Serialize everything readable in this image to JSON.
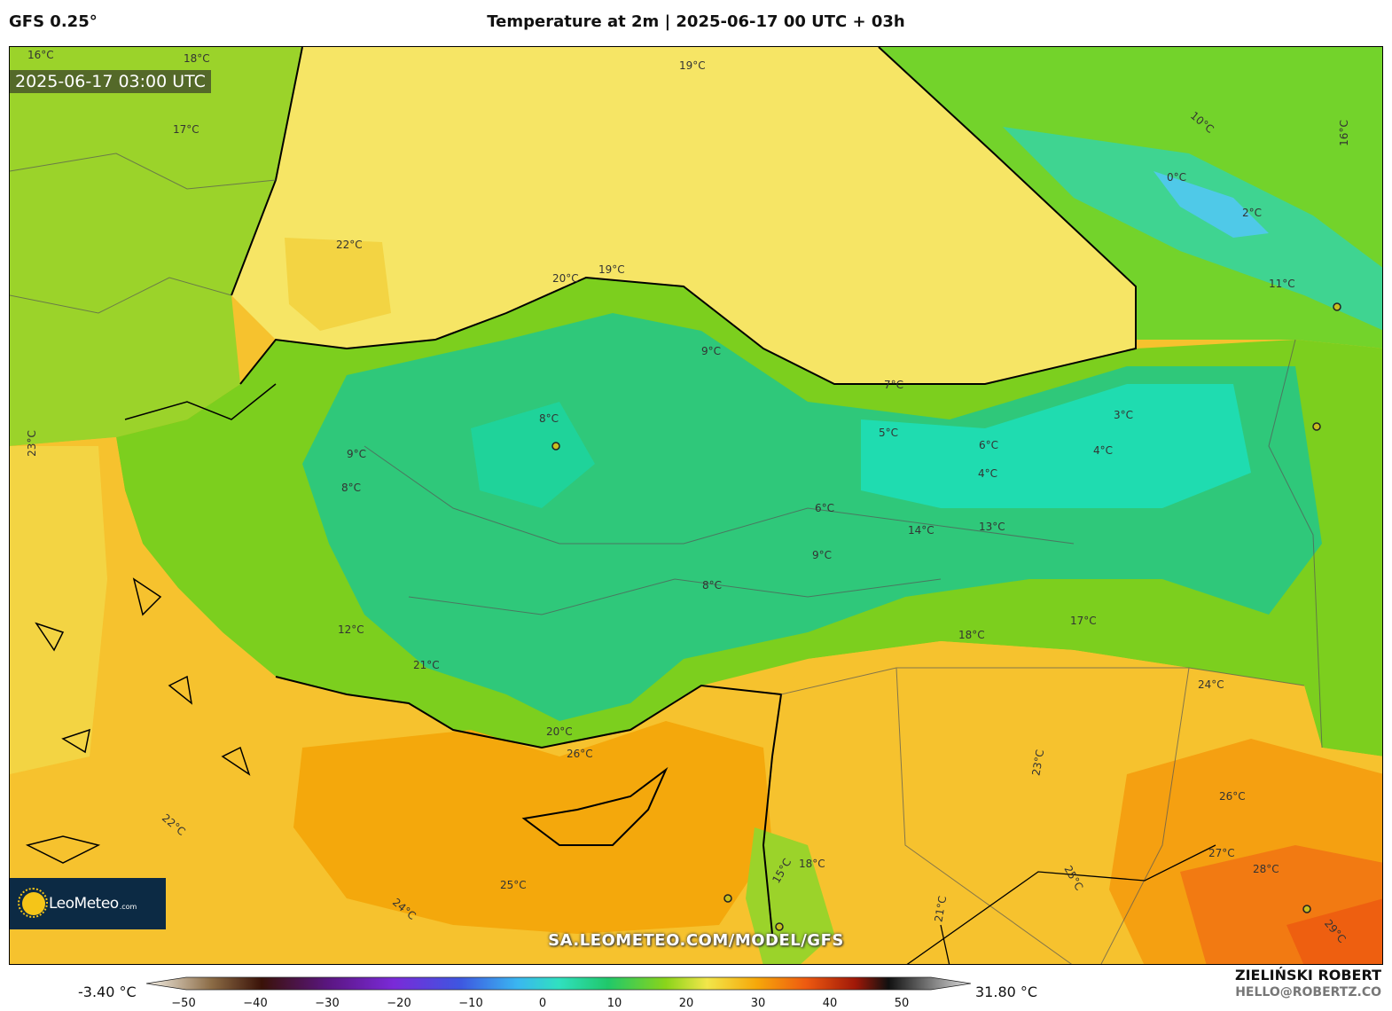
{
  "header": {
    "model": "GFS 0.25°",
    "title": "Temperature at 2m | 2025-06-17 00 UTC + 03h"
  },
  "map": {
    "timestamp": "2025-06-17 03:00 UTC",
    "watermark": "SA.LEOMETEO.COM/MODEL/GFS",
    "logo_text": "LeoMeteo",
    "logo_suffix": ".com",
    "colors": {
      "cold": "#1ed9b0",
      "cool": "#2fc87a",
      "mild": "#7ccf1e",
      "warm": "#f3e04a",
      "hot": "#f4a50a",
      "very_hot": "#f26a10",
      "sea_black": "#f2e260"
    },
    "temperature_labels": [
      "16°C",
      "18°C",
      "17°C",
      "16°C",
      "15°C",
      "14°C",
      "18°C",
      "21°C",
      "22°C",
      "20°C",
      "19°C",
      "17°C",
      "14°C",
      "13°C",
      "12°C",
      "9°C",
      "8°C",
      "7°C",
      "6°C",
      "5°C",
      "4°C",
      "3°C",
      "2°C",
      "0°C",
      "10°C",
      "11°C",
      "13°C",
      "15°C",
      "18°C",
      "20°C",
      "21°C",
      "22°C",
      "23°C",
      "24°C",
      "25°C",
      "26°C",
      "27°C",
      "28°C",
      "29°C"
    ]
  },
  "colorbar": {
    "min_label": "-3.40 °C",
    "max_label": "31.80 °C",
    "ticks": [
      "−50",
      "−40",
      "−30",
      "−20",
      "−10",
      "0",
      "10",
      "20",
      "30",
      "40",
      "50"
    ]
  },
  "footer": {
    "author": "ZIELIŃSKI ROBERT",
    "email": "HELLO@ROBERTZ.CO"
  }
}
